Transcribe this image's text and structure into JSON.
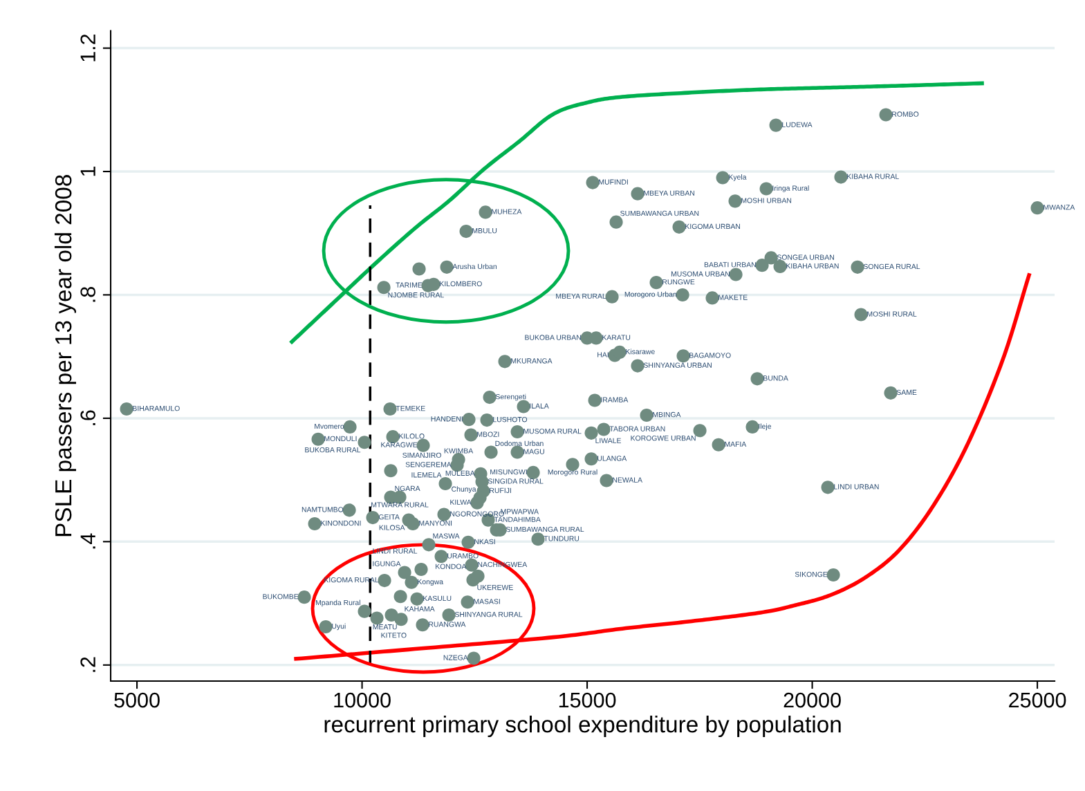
{
  "chart_data": {
    "type": "scatter",
    "xlabel": "recurrent primary school expenditure by population",
    "ylabel": "PSLE passers per 13 year old 2008",
    "xlim": [
      4416,
      25384
    ],
    "ylim": [
      0.174,
      1.228
    ],
    "xticks": [
      5000,
      10000,
      15000,
      20000,
      25000
    ],
    "yticks": [
      {
        "value": 0.2,
        "label": ".2"
      },
      {
        "value": 0.4,
        "label": ".4"
      },
      {
        "value": 0.6,
        "label": ".6"
      },
      {
        "value": 0.8,
        "label": ".8"
      },
      {
        "value": 1,
        "label": "1"
      },
      {
        "value": 1.2,
        "label": "1.2"
      }
    ],
    "grid": "y",
    "series": [
      {
        "type": "scatter",
        "marker": "circle",
        "color": "#6f8b80",
        "x": [
          4770,
          10622,
          9731,
          9025,
          10054,
          10684,
          11359,
          10637,
          10637,
          10837,
          9716,
          8948,
          10238,
          11037,
          11129,
          11820,
          12803,
          12988,
          13065,
          13909,
          12358,
          11482,
          11759,
          12435,
          10499,
          10945,
          11098,
          11313,
          12465,
          12573,
          8717,
          10853,
          11221,
          12343,
          10054,
          10330,
          10653,
          10868,
          11344,
          11928,
          9194,
          12481,
          12834,
          13587,
          12373,
          12773,
          12419,
          13449,
          12865,
          13449,
          12143,
          12112,
          12634,
          12665,
          13802,
          11851,
          12696,
          12619,
          12557,
          14677,
          15092,
          15430,
          13172,
          15000,
          15200,
          15614,
          15722,
          16121,
          17135,
          18779,
          15169,
          16321,
          15092,
          15369,
          17504,
          18671,
          17919,
          20346,
          20469,
          21743,
          21083,
          15553,
          17120,
          17780,
          16536,
          18303,
          18886,
          19086,
          19286,
          21006,
          15645,
          17043,
          15123,
          16121,
          18011,
          18979,
          18287,
          20637,
          19194,
          21636,
          25000,
          12742,
          12312,
          11882,
          11267,
          10484,
          11467,
          11590
        ],
        "values": [
          0.615,
          0.615,
          0.586,
          0.566,
          0.561,
          0.57,
          0.556,
          0.515,
          0.472,
          0.472,
          0.451,
          0.429,
          0.439,
          0.435,
          0.429,
          0.444,
          0.435,
          0.419,
          0.419,
          0.404,
          0.399,
          0.395,
          0.376,
          0.362,
          0.337,
          0.35,
          0.334,
          0.355,
          0.338,
          0.344,
          0.31,
          0.311,
          0.307,
          0.302,
          0.287,
          0.276,
          0.281,
          0.274,
          0.265,
          0.281,
          0.262,
          0.211,
          0.634,
          0.619,
          0.598,
          0.597,
          0.573,
          0.578,
          0.545,
          0.545,
          0.533,
          0.524,
          0.51,
          0.497,
          0.512,
          0.494,
          0.482,
          0.471,
          0.463,
          0.525,
          0.534,
          0.499,
          0.692,
          0.73,
          0.73,
          0.702,
          0.707,
          0.685,
          0.701,
          0.664,
          0.629,
          0.605,
          0.576,
          0.582,
          0.58,
          0.586,
          0.557,
          0.488,
          0.346,
          0.641,
          0.768,
          0.797,
          0.8,
          0.795,
          0.82,
          0.833,
          0.848,
          0.86,
          0.846,
          0.845,
          0.918,
          0.91,
          0.982,
          0.964,
          0.99,
          0.972,
          0.952,
          0.991,
          1.075,
          1.092,
          0.941,
          0.934,
          0.903,
          0.845,
          0.842,
          0.812,
          0.815,
          0.817
        ],
        "value_labels": [
          "BIHARAMULO",
          "TEMEKE",
          "Mvomero",
          "MONDULI",
          "BUKOBA RURAL",
          "KILOLO",
          "KARAGWE",
          "SIMANJIRO",
          "NGARA",
          "MTWARA RURAL",
          "NAMTUMBO",
          "KINONDONI",
          "GEITA",
          "KILOSA",
          "MANYONI",
          "NGORONGORO",
          "TANDAHIMBA",
          "MPWAPWA",
          "SUMBAWANGA RURAL",
          "TUNDURU",
          "NKASI",
          "MASWA",
          "URAMBO",
          "NACHINGWEA",
          "KIGOMA RURAL",
          "IGUNGA",
          "Kongwa",
          "LINDI RURAL",
          "UKEREWE",
          "KONDOA",
          "BUKOMBE",
          "KAHAMA",
          "KASULU",
          "MASASI",
          "Mpanda Rural",
          "KITETO",
          null,
          "MEATU",
          "RUANGWA",
          "SHINYANGA RURAL",
          "Uyui",
          "NZEGA",
          "Serengeti",
          "ILALA",
          "HANDENI",
          "LUSHOTO",
          "MBOZI",
          "MUSOMA RURAL",
          "Dodoma Urban",
          "MAGU",
          "KWIMBA",
          "SENGEREMA",
          "MULEBA",
          "SINGIDA RURAL",
          "MISUNGWI",
          "ILEMELA",
          "RUFIJI",
          "Chunya",
          "KILWA",
          "Morogoro Rural",
          "ULANGA",
          "NEWALA",
          "MKURANGA",
          "BUKOBA URBAN",
          "KARATU",
          "HAI",
          "Kisarawe",
          "SHINYANGA URBAN",
          "BAGAMOYO",
          "BUNDA",
          "IRAMBA",
          "MBINGA",
          "LIWALE",
          "TABORA URBAN",
          "KOROGWE URBAN",
          "Ileje",
          "MAFIA",
          "LINDI URBAN",
          "SIKONGE",
          "SAME",
          "MOSHI RURAL",
          "MBEYA RURAL",
          "Morogoro Urban",
          "MAKETE",
          "RUNGWE",
          "MUSOMA URBAN",
          "BABATI URBAN",
          "SONGEA URBAN",
          "KIBAHA URBAN",
          "SONGEA RURAL",
          "SUMBAWANGA URBAN",
          "KIGOMA URBAN",
          "MUFINDI",
          "MBEYA URBAN",
          "Kyela",
          "Iringa Rural",
          "MOSHI URBAN",
          "KIBAHA RURAL",
          "LUDEWA",
          "ROMBO",
          "MWANZA",
          "MUHEZA",
          "MBULU",
          "Arusha Urban",
          null,
          "NJOMBE RURAL",
          "TARIME",
          "KILOMBERO"
        ]
      },
      {
        "type": "line",
        "color": "#00b04f",
        "x": [
          8441,
          9332,
          10253,
          11175,
          11943,
          12711,
          13479,
          14247,
          15015,
          15783,
          17319,
          18855,
          20392,
          21928,
          23771
        ],
        "values": [
          0.724,
          0.785,
          0.848,
          0.908,
          0.953,
          1.004,
          1.048,
          1.093,
          1.112,
          1.121,
          1.128,
          1.133,
          1.136,
          1.139,
          1.143
        ]
      },
      {
        "type": "line",
        "color": "#ff0000",
        "x": [
          8533,
          11175,
          14247,
          15783,
          17319,
          18855,
          19624,
          20392,
          21160,
          21928,
          22696,
          23464,
          24232,
          24816
        ],
        "values": [
          0.21,
          0.226,
          0.245,
          0.259,
          0.271,
          0.285,
          0.297,
          0.313,
          0.341,
          0.386,
          0.459,
          0.56,
          0.695,
          0.832
        ]
      },
      {
        "type": "line",
        "color": "#000000",
        "line_style": "dashed",
        "x": [
          10180,
          10180
        ],
        "values": [
          0.2,
          0.945
        ]
      }
    ]
  }
}
